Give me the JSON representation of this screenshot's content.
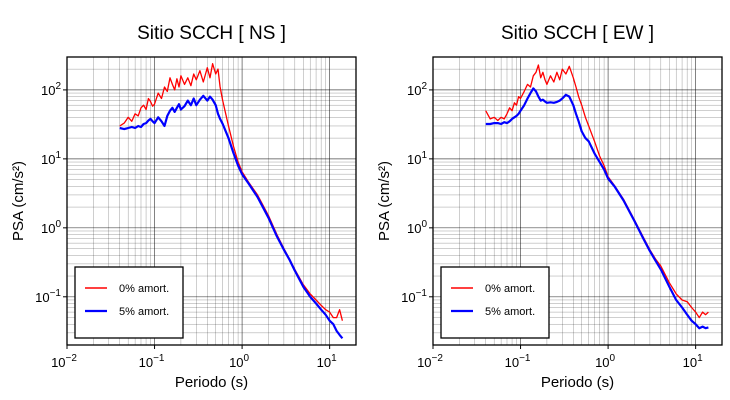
{
  "chart_data": [
    {
      "type": "line",
      "title": "Sitio SCCH [ NS ]",
      "xlabel": "Periodo (s)",
      "ylabel": "PSA (cm/s²)",
      "xscale": "log",
      "yscale": "log",
      "xlim": [
        0.01,
        20
      ],
      "ylim": [
        0.02,
        300
      ],
      "grid": true,
      "legend_position": "bottom-left",
      "xticks": [
        {
          "base": "10",
          "exp": "−2"
        },
        {
          "base": "10",
          "exp": "−1"
        },
        {
          "base": "10",
          "exp": "0"
        },
        {
          "base": "10",
          "exp": "1"
        }
      ],
      "yticks": [
        {
          "base": "10",
          "exp": "−1"
        },
        {
          "base": "10",
          "exp": "0"
        },
        {
          "base": "10",
          "exp": "1"
        },
        {
          "base": "10",
          "exp": "2"
        }
      ],
      "series": [
        {
          "name": "0% amort.",
          "color": "#ff0000",
          "x": [
            0.04,
            0.045,
            0.05,
            0.055,
            0.06,
            0.065,
            0.07,
            0.075,
            0.08,
            0.085,
            0.09,
            0.095,
            0.1,
            0.11,
            0.12,
            0.13,
            0.14,
            0.15,
            0.16,
            0.17,
            0.18,
            0.19,
            0.2,
            0.22,
            0.24,
            0.26,
            0.28,
            0.3,
            0.33,
            0.36,
            0.4,
            0.43,
            0.46,
            0.5,
            0.53,
            0.56,
            0.6,
            0.7,
            0.8,
            0.9,
            1.0,
            1.2,
            1.5,
            2.0,
            2.5,
            3.0,
            3.5,
            4.0,
            5.0,
            6.0,
            7.0,
            8.0,
            9.0,
            10.0,
            11.0,
            12.0,
            13.0,
            14.0
          ],
          "y": [
            30,
            33,
            40,
            35,
            45,
            42,
            55,
            60,
            52,
            75,
            68,
            58,
            62,
            90,
            75,
            110,
            95,
            150,
            120,
            100,
            145,
            110,
            160,
            120,
            150,
            115,
            170,
            140,
            190,
            130,
            210,
            150,
            240,
            170,
            200,
            110,
            70,
            30,
            15,
            9,
            6.5,
            4.5,
            3.0,
            1.5,
            0.8,
            0.5,
            0.35,
            0.25,
            0.15,
            0.11,
            0.09,
            0.075,
            0.065,
            0.06,
            0.05,
            0.05,
            0.065,
            0.045
          ]
        },
        {
          "name": "5% amort.",
          "color": "#0000ff",
          "x": [
            0.04,
            0.045,
            0.05,
            0.055,
            0.06,
            0.065,
            0.07,
            0.075,
            0.08,
            0.085,
            0.09,
            0.095,
            0.1,
            0.11,
            0.12,
            0.13,
            0.14,
            0.15,
            0.16,
            0.17,
            0.18,
            0.19,
            0.2,
            0.22,
            0.24,
            0.26,
            0.28,
            0.3,
            0.33,
            0.36,
            0.4,
            0.43,
            0.46,
            0.5,
            0.53,
            0.56,
            0.6,
            0.7,
            0.8,
            0.9,
            1.0,
            1.2,
            1.5,
            2.0,
            2.5,
            3.0,
            3.5,
            4.0,
            5.0,
            6.0,
            7.0,
            8.0,
            9.0,
            10.0,
            11.0,
            12.0,
            13.0,
            14.0
          ],
          "y": [
            28,
            27,
            28,
            29,
            28,
            30,
            29,
            32,
            33,
            36,
            38,
            35,
            33,
            40,
            35,
            30,
            42,
            50,
            55,
            48,
            55,
            62,
            52,
            58,
            70,
            60,
            75,
            60,
            72,
            82,
            70,
            80,
            72,
            60,
            45,
            38,
            32,
            20,
            12,
            8,
            6.0,
            4.3,
            2.8,
            1.4,
            0.75,
            0.48,
            0.34,
            0.24,
            0.14,
            0.1,
            0.08,
            0.065,
            0.055,
            0.045,
            0.04,
            0.032,
            0.028,
            0.025
          ]
        }
      ]
    },
    {
      "type": "line",
      "title": "Sitio SCCH [ EW ]",
      "xlabel": "Periodo (s)",
      "ylabel": "PSA (cm/s²)",
      "xscale": "log",
      "yscale": "log",
      "xlim": [
        0.01,
        20
      ],
      "ylim": [
        0.02,
        300
      ],
      "grid": true,
      "legend_position": "bottom-left",
      "xticks": [
        {
          "base": "10",
          "exp": "−2"
        },
        {
          "base": "10",
          "exp": "−1"
        },
        {
          "base": "10",
          "exp": "0"
        },
        {
          "base": "10",
          "exp": "1"
        }
      ],
      "yticks": [
        {
          "base": "10",
          "exp": "−1"
        },
        {
          "base": "10",
          "exp": "0"
        },
        {
          "base": "10",
          "exp": "1"
        },
        {
          "base": "10",
          "exp": "2"
        }
      ],
      "series": [
        {
          "name": "0% amort.",
          "color": "#ff0000",
          "x": [
            0.04,
            0.045,
            0.05,
            0.055,
            0.06,
            0.065,
            0.07,
            0.075,
            0.08,
            0.085,
            0.09,
            0.095,
            0.1,
            0.11,
            0.12,
            0.13,
            0.14,
            0.15,
            0.16,
            0.17,
            0.18,
            0.19,
            0.2,
            0.22,
            0.24,
            0.26,
            0.28,
            0.3,
            0.33,
            0.36,
            0.4,
            0.43,
            0.46,
            0.5,
            0.55,
            0.6,
            0.7,
            0.8,
            0.9,
            1.0,
            1.2,
            1.5,
            2.0,
            2.5,
            3.0,
            3.5,
            4.0,
            5.0,
            6.0,
            7.0,
            8.0,
            9.0,
            10.0,
            11.0,
            12.0,
            13.0,
            14.0
          ],
          "y": [
            50,
            38,
            40,
            36,
            40,
            38,
            45,
            55,
            50,
            65,
            60,
            80,
            75,
            95,
            120,
            110,
            160,
            180,
            230,
            150,
            180,
            140,
            120,
            160,
            130,
            180,
            140,
            200,
            170,
            220,
            150,
            110,
            80,
            60,
            40,
            30,
            18,
            11,
            8,
            5.5,
            4.0,
            2.6,
            1.3,
            0.75,
            0.48,
            0.35,
            0.28,
            0.16,
            0.11,
            0.09,
            0.085,
            0.07,
            0.06,
            0.05,
            0.06,
            0.055,
            0.06
          ]
        },
        {
          "name": "5% amort.",
          "color": "#0000ff",
          "x": [
            0.04,
            0.045,
            0.05,
            0.055,
            0.06,
            0.065,
            0.07,
            0.075,
            0.08,
            0.085,
            0.09,
            0.095,
            0.1,
            0.11,
            0.12,
            0.13,
            0.14,
            0.15,
            0.16,
            0.17,
            0.18,
            0.19,
            0.2,
            0.22,
            0.24,
            0.26,
            0.28,
            0.3,
            0.33,
            0.36,
            0.4,
            0.43,
            0.46,
            0.5,
            0.55,
            0.6,
            0.7,
            0.8,
            0.9,
            1.0,
            1.2,
            1.5,
            2.0,
            2.5,
            3.0,
            3.5,
            4.0,
            5.0,
            6.0,
            7.0,
            8.0,
            9.0,
            10.0,
            11.0,
            12.0,
            13.0,
            14.0
          ],
          "y": [
            32,
            32,
            33,
            33,
            32,
            34,
            33,
            35,
            38,
            40,
            42,
            45,
            50,
            60,
            75,
            90,
            105,
            95,
            80,
            70,
            72,
            68,
            65,
            66,
            65,
            67,
            70,
            75,
            85,
            80,
            60,
            45,
            35,
            25,
            20,
            18,
            12,
            9,
            7,
            5.2,
            3.9,
            2.5,
            1.25,
            0.72,
            0.46,
            0.33,
            0.25,
            0.14,
            0.09,
            0.07,
            0.055,
            0.045,
            0.04,
            0.035,
            0.037,
            0.035,
            0.036
          ]
        }
      ]
    }
  ]
}
